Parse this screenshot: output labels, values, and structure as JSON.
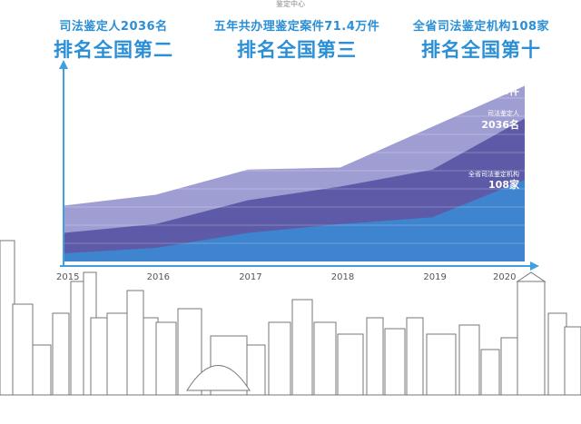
{
  "header": {
    "caption": "鉴定中心",
    "stats": [
      {
        "line1": "司法鉴定人2036名",
        "line2": "排名全国第二"
      },
      {
        "line1": "五年共办理鉴定案件71.4万件",
        "line2": "排名全国第三"
      },
      {
        "line1": "全省司法鉴定机构108家",
        "line2": "排名全国第十"
      }
    ]
  },
  "colors": {
    "accent": "#2b8fd6",
    "series_cases": "#9f9ed2",
    "series_people": "#5d5ba7",
    "series_institutions": "#3e84cf",
    "axis": "#3fa0e0"
  },
  "chart_data": {
    "type": "area",
    "x": [
      "2015",
      "2016",
      "2017",
      "2018",
      "2019",
      "2020"
    ],
    "series": [
      {
        "name": "五年共办理鉴定案件",
        "label_value": "714000件",
        "values": [
          0.82,
          0.98,
          1.35,
          1.38,
          1.98,
          2.58
        ]
      },
      {
        "name": "司法鉴定人",
        "label_value": "2036名",
        "values": [
          0.42,
          0.55,
          0.9,
          1.1,
          1.35,
          2.1
        ]
      },
      {
        "name": "全省司法鉴定机构",
        "label_value": "108家",
        "values": [
          0.12,
          0.2,
          0.42,
          0.55,
          0.65,
          1.2
        ]
      }
    ],
    "ylim": [
      0,
      2.8
    ]
  }
}
